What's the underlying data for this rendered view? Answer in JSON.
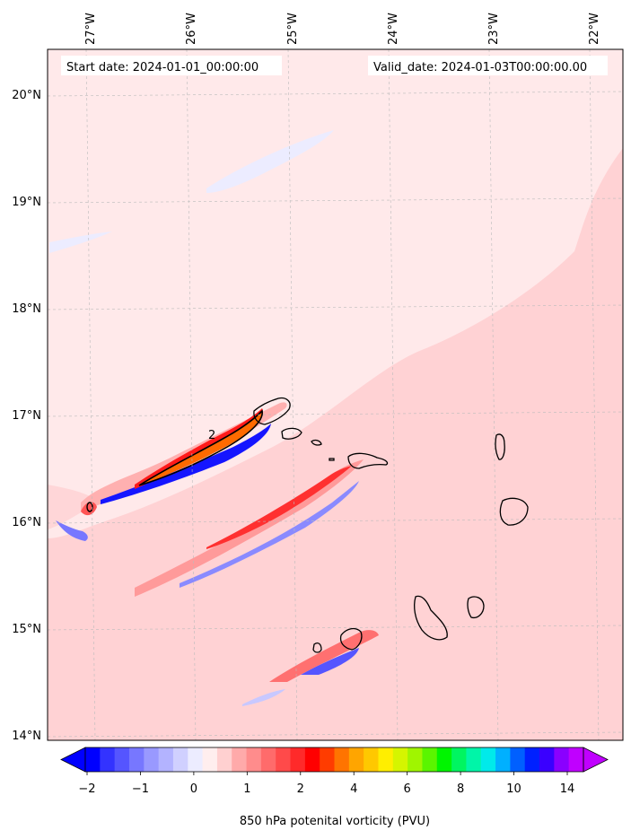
{
  "map": {
    "start_label": "Start date: 2024-01-01_00:00:00",
    "valid_label": "Valid_date: 2024-01-03T00:00:00.00",
    "lon_labels": [
      "27°W",
      "26°W",
      "25°W",
      "24°W",
      "23°W",
      "22°W"
    ],
    "lat_labels": [
      "20°N",
      "19°N",
      "18°N",
      "17°N",
      "16°N",
      "15°N",
      "14°N"
    ],
    "contour_label": "2",
    "background_color": "#ffe9ea"
  },
  "colorbar": {
    "label": "850 hPa potenital vorticity (PVU)",
    "tick_labels": [
      "−2",
      "−1",
      "0",
      "1",
      "2",
      "4",
      "6",
      "8",
      "10",
      "14"
    ],
    "colors": [
      "#0000ff",
      "#3333ff",
      "#5555ff",
      "#7777ff",
      "#9999ff",
      "#b3b3ff",
      "#d0d0ff",
      "#ececff",
      "#ffeeee",
      "#ffd0d0",
      "#ffaaaa",
      "#ff8c8c",
      "#ff6b6b",
      "#ff4a4a",
      "#ff2a2a",
      "#ff0000",
      "#ff3c00",
      "#ff7400",
      "#ffa500",
      "#ffc800",
      "#ffee00",
      "#d5f500",
      "#a0f500",
      "#5af500",
      "#00f500",
      "#00f560",
      "#00f5a8",
      "#00eaea",
      "#00b0ff",
      "#0060ff",
      "#0020ff",
      "#3a00ff",
      "#8a00ff",
      "#c000ff"
    ]
  }
}
